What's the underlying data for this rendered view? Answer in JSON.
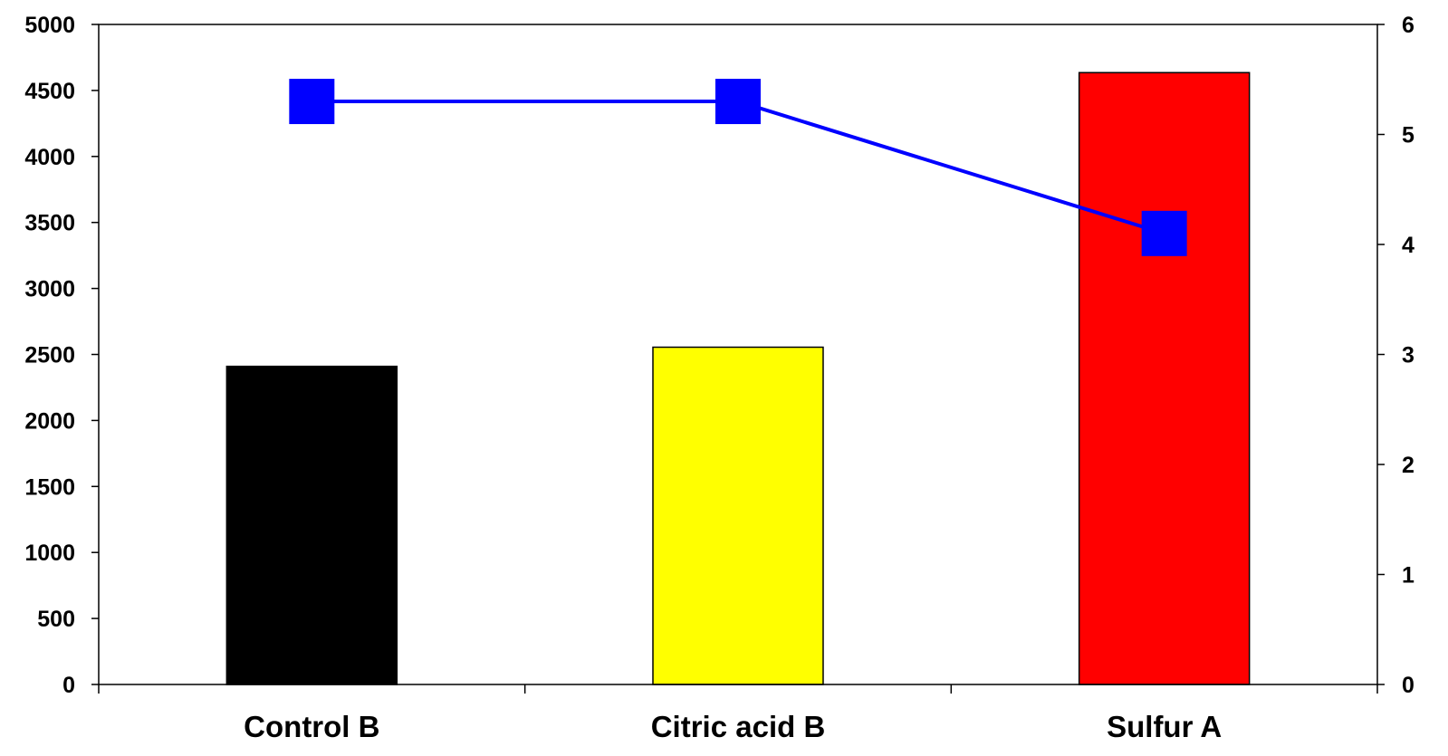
{
  "chart_data": {
    "type": "bar",
    "categories": [
      "Control B",
      "Citric acid B",
      "Sulfur A"
    ],
    "series": [
      {
        "type": "bar",
        "axis": "left",
        "values": [
          2410,
          2555,
          4635
        ],
        "colors": [
          "#000000",
          "#ffff00",
          "#ff0000"
        ]
      },
      {
        "type": "line",
        "axis": "right",
        "values": [
          5.3,
          5.3,
          4.1
        ],
        "color": "#0000ff",
        "marker": "square"
      }
    ],
    "y_left": {
      "range": [
        0,
        5000
      ],
      "ticks": [
        0,
        500,
        1000,
        1500,
        2000,
        2500,
        3000,
        3500,
        4000,
        4500,
        5000
      ]
    },
    "y_right": {
      "range": [
        0,
        6
      ],
      "ticks": [
        0,
        1,
        2,
        3,
        4,
        5,
        6
      ]
    },
    "grid": false,
    "legend": "none"
  }
}
